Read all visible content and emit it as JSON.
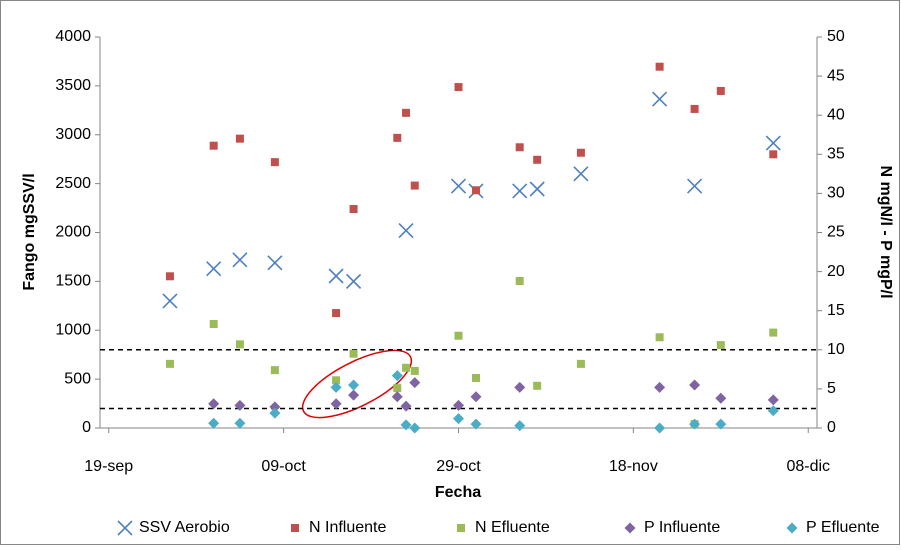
{
  "chart_data": {
    "type": "scatter",
    "xlabel": "Fecha",
    "ylabel": "Fango mgSSV/l",
    "y2label": "N mgN/l - P mgP/l",
    "xlim": [
      261,
      343
    ],
    "xticks": [
      {
        "value": 262,
        "label": "19-sep"
      },
      {
        "value": 282,
        "label": "09-oct"
      },
      {
        "value": 302,
        "label": "29-oct"
      },
      {
        "value": 322,
        "label": "18-nov"
      },
      {
        "value": 342,
        "label": "08-dic"
      }
    ],
    "ylim": [
      0,
      4000
    ],
    "yticks": [
      0,
      500,
      1000,
      1500,
      2000,
      2500,
      3000,
      3500,
      4000
    ],
    "y2lim": [
      0,
      50
    ],
    "y2ticks": [
      0,
      5,
      10,
      15,
      20,
      25,
      30,
      35,
      40,
      45,
      50
    ],
    "grid": false,
    "legend": "bottom",
    "reference_lines": [
      {
        "value": 10,
        "axis": "y2"
      },
      {
        "value": 2.5,
        "axis": "y2"
      }
    ],
    "series": [
      {
        "name": "SSV Aerobio",
        "color": "#4f81bd",
        "marker": "x",
        "axis": "y",
        "x": [
          269,
          274,
          277,
          281,
          288,
          290,
          296,
          302,
          304,
          309,
          311,
          316,
          325,
          329,
          338
        ],
        "values": [
          1300,
          1630,
          1720,
          1690,
          1555,
          1500,
          2020,
          2475,
          2425,
          2425,
          2445,
          2600,
          3365,
          2475,
          2915
        ]
      },
      {
        "name": "N Influente",
        "color": "#c0504d",
        "marker": "square",
        "axis": "y2",
        "x": [
          269,
          274,
          277,
          281,
          288,
          290,
          295,
          296,
          297,
          302,
          304,
          309,
          311,
          316,
          325,
          329,
          332,
          338
        ],
        "values": [
          19.4,
          36.1,
          37.0,
          34.0,
          14.7,
          28.0,
          37.1,
          40.3,
          31.0,
          43.6,
          30.4,
          35.9,
          34.3,
          35.2,
          46.2,
          40.8,
          43.1,
          35.0
        ]
      },
      {
        "name": "N Efluente",
        "color": "#9bbb59",
        "marker": "square",
        "axis": "y2",
        "x": [
          269,
          274,
          277,
          281,
          288,
          290,
          295,
          296,
          297,
          302,
          304,
          309,
          311,
          316,
          325,
          329,
          332,
          338
        ],
        "values": [
          8.2,
          13.3,
          10.7,
          7.4,
          6.1,
          9.5,
          5.1,
          7.7,
          7.3,
          11.8,
          6.4,
          18.8,
          5.4,
          8.2,
          11.6,
          0.5,
          10.6,
          12.2
        ]
      },
      {
        "name": "P Influente",
        "color": "#8064a2",
        "marker": "diamond",
        "axis": "y2",
        "x": [
          274,
          277,
          281,
          288,
          290,
          295,
          296,
          297,
          302,
          304,
          309,
          325,
          329,
          332,
          338
        ],
        "values": [
          3.1,
          2.9,
          2.7,
          3.1,
          4.2,
          4.0,
          2.8,
          5.8,
          2.9,
          4.0,
          5.2,
          5.2,
          5.5,
          3.8,
          3.6
        ]
      },
      {
        "name": "P Efluente",
        "color": "#4bacc6",
        "marker": "diamond",
        "axis": "y2",
        "x": [
          274,
          277,
          281,
          288,
          290,
          295,
          296,
          297,
          302,
          304,
          309,
          325,
          329,
          332,
          338
        ],
        "values": [
          0.6,
          0.6,
          1.9,
          5.2,
          5.5,
          6.7,
          0.4,
          0,
          1.2,
          0.5,
          0.3,
          0,
          0.5,
          0.5,
          2.2
        ]
      }
    ]
  }
}
